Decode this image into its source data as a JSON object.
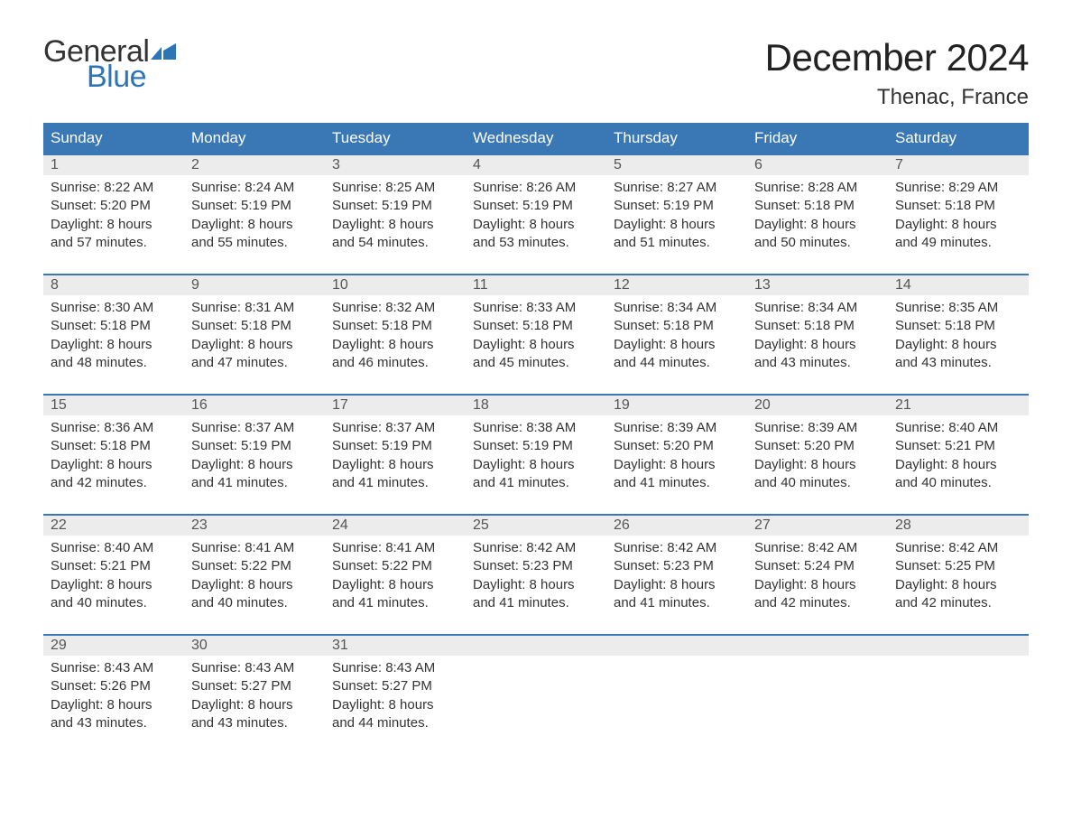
{
  "logo": {
    "word1": "General",
    "word2": "Blue"
  },
  "title": "December 2024",
  "location": "Thenac, France",
  "colors": {
    "header_bg": "#3a78b5",
    "header_text": "#ffffff",
    "daynum_bg": "#ececec",
    "week_border": "#3a78b5",
    "text": "#333333",
    "logo_blue": "#2e75b6"
  },
  "weekdays": [
    "Sunday",
    "Monday",
    "Tuesday",
    "Wednesday",
    "Thursday",
    "Friday",
    "Saturday"
  ],
  "weeks": [
    [
      {
        "n": "1",
        "sr": "Sunrise: 8:22 AM",
        "ss": "Sunset: 5:20 PM",
        "d1": "Daylight: 8 hours",
        "d2": "and 57 minutes."
      },
      {
        "n": "2",
        "sr": "Sunrise: 8:24 AM",
        "ss": "Sunset: 5:19 PM",
        "d1": "Daylight: 8 hours",
        "d2": "and 55 minutes."
      },
      {
        "n": "3",
        "sr": "Sunrise: 8:25 AM",
        "ss": "Sunset: 5:19 PM",
        "d1": "Daylight: 8 hours",
        "d2": "and 54 minutes."
      },
      {
        "n": "4",
        "sr": "Sunrise: 8:26 AM",
        "ss": "Sunset: 5:19 PM",
        "d1": "Daylight: 8 hours",
        "d2": "and 53 minutes."
      },
      {
        "n": "5",
        "sr": "Sunrise: 8:27 AM",
        "ss": "Sunset: 5:19 PM",
        "d1": "Daylight: 8 hours",
        "d2": "and 51 minutes."
      },
      {
        "n": "6",
        "sr": "Sunrise: 8:28 AM",
        "ss": "Sunset: 5:18 PM",
        "d1": "Daylight: 8 hours",
        "d2": "and 50 minutes."
      },
      {
        "n": "7",
        "sr": "Sunrise: 8:29 AM",
        "ss": "Sunset: 5:18 PM",
        "d1": "Daylight: 8 hours",
        "d2": "and 49 minutes."
      }
    ],
    [
      {
        "n": "8",
        "sr": "Sunrise: 8:30 AM",
        "ss": "Sunset: 5:18 PM",
        "d1": "Daylight: 8 hours",
        "d2": "and 48 minutes."
      },
      {
        "n": "9",
        "sr": "Sunrise: 8:31 AM",
        "ss": "Sunset: 5:18 PM",
        "d1": "Daylight: 8 hours",
        "d2": "and 47 minutes."
      },
      {
        "n": "10",
        "sr": "Sunrise: 8:32 AM",
        "ss": "Sunset: 5:18 PM",
        "d1": "Daylight: 8 hours",
        "d2": "and 46 minutes."
      },
      {
        "n": "11",
        "sr": "Sunrise: 8:33 AM",
        "ss": "Sunset: 5:18 PM",
        "d1": "Daylight: 8 hours",
        "d2": "and 45 minutes."
      },
      {
        "n": "12",
        "sr": "Sunrise: 8:34 AM",
        "ss": "Sunset: 5:18 PM",
        "d1": "Daylight: 8 hours",
        "d2": "and 44 minutes."
      },
      {
        "n": "13",
        "sr": "Sunrise: 8:34 AM",
        "ss": "Sunset: 5:18 PM",
        "d1": "Daylight: 8 hours",
        "d2": "and 43 minutes."
      },
      {
        "n": "14",
        "sr": "Sunrise: 8:35 AM",
        "ss": "Sunset: 5:18 PM",
        "d1": "Daylight: 8 hours",
        "d2": "and 43 minutes."
      }
    ],
    [
      {
        "n": "15",
        "sr": "Sunrise: 8:36 AM",
        "ss": "Sunset: 5:18 PM",
        "d1": "Daylight: 8 hours",
        "d2": "and 42 minutes."
      },
      {
        "n": "16",
        "sr": "Sunrise: 8:37 AM",
        "ss": "Sunset: 5:19 PM",
        "d1": "Daylight: 8 hours",
        "d2": "and 41 minutes."
      },
      {
        "n": "17",
        "sr": "Sunrise: 8:37 AM",
        "ss": "Sunset: 5:19 PM",
        "d1": "Daylight: 8 hours",
        "d2": "and 41 minutes."
      },
      {
        "n": "18",
        "sr": "Sunrise: 8:38 AM",
        "ss": "Sunset: 5:19 PM",
        "d1": "Daylight: 8 hours",
        "d2": "and 41 minutes."
      },
      {
        "n": "19",
        "sr": "Sunrise: 8:39 AM",
        "ss": "Sunset: 5:20 PM",
        "d1": "Daylight: 8 hours",
        "d2": "and 41 minutes."
      },
      {
        "n": "20",
        "sr": "Sunrise: 8:39 AM",
        "ss": "Sunset: 5:20 PM",
        "d1": "Daylight: 8 hours",
        "d2": "and 40 minutes."
      },
      {
        "n": "21",
        "sr": "Sunrise: 8:40 AM",
        "ss": "Sunset: 5:21 PM",
        "d1": "Daylight: 8 hours",
        "d2": "and 40 minutes."
      }
    ],
    [
      {
        "n": "22",
        "sr": "Sunrise: 8:40 AM",
        "ss": "Sunset: 5:21 PM",
        "d1": "Daylight: 8 hours",
        "d2": "and 40 minutes."
      },
      {
        "n": "23",
        "sr": "Sunrise: 8:41 AM",
        "ss": "Sunset: 5:22 PM",
        "d1": "Daylight: 8 hours",
        "d2": "and 40 minutes."
      },
      {
        "n": "24",
        "sr": "Sunrise: 8:41 AM",
        "ss": "Sunset: 5:22 PM",
        "d1": "Daylight: 8 hours",
        "d2": "and 41 minutes."
      },
      {
        "n": "25",
        "sr": "Sunrise: 8:42 AM",
        "ss": "Sunset: 5:23 PM",
        "d1": "Daylight: 8 hours",
        "d2": "and 41 minutes."
      },
      {
        "n": "26",
        "sr": "Sunrise: 8:42 AM",
        "ss": "Sunset: 5:23 PM",
        "d1": "Daylight: 8 hours",
        "d2": "and 41 minutes."
      },
      {
        "n": "27",
        "sr": "Sunrise: 8:42 AM",
        "ss": "Sunset: 5:24 PM",
        "d1": "Daylight: 8 hours",
        "d2": "and 42 minutes."
      },
      {
        "n": "28",
        "sr": "Sunrise: 8:42 AM",
        "ss": "Sunset: 5:25 PM",
        "d1": "Daylight: 8 hours",
        "d2": "and 42 minutes."
      }
    ],
    [
      {
        "n": "29",
        "sr": "Sunrise: 8:43 AM",
        "ss": "Sunset: 5:26 PM",
        "d1": "Daylight: 8 hours",
        "d2": "and 43 minutes."
      },
      {
        "n": "30",
        "sr": "Sunrise: 8:43 AM",
        "ss": "Sunset: 5:27 PM",
        "d1": "Daylight: 8 hours",
        "d2": "and 43 minutes."
      },
      {
        "n": "31",
        "sr": "Sunrise: 8:43 AM",
        "ss": "Sunset: 5:27 PM",
        "d1": "Daylight: 8 hours",
        "d2": "and 44 minutes."
      },
      null,
      null,
      null,
      null
    ]
  ]
}
